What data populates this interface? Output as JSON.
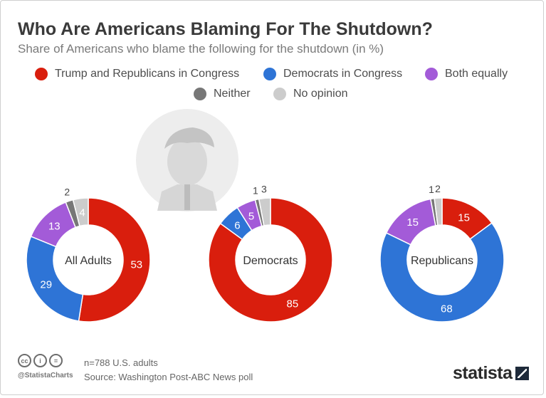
{
  "title": "Who Are Americans Blaming For The Shutdown?",
  "subtitle": "Share of Americans who blame the following for the shutdown (in %)",
  "legend": [
    {
      "label": "Trump and Republicans in Congress",
      "color": "#d91e0d"
    },
    {
      "label": "Democrats in Congress",
      "color": "#2e74d6"
    },
    {
      "label": "Both equally",
      "color": "#a35bd8"
    },
    {
      "label": "Neither",
      "color": "#777777"
    },
    {
      "label": "No opinion",
      "color": "#cccccc"
    }
  ],
  "chart_data": [
    {
      "type": "pie",
      "title": "All Adults",
      "series": [
        {
          "name": "Trump and Republicans in Congress",
          "value": 53,
          "color": "#d91e0d"
        },
        {
          "name": "Democrats in Congress",
          "value": 29,
          "color": "#2e74d6"
        },
        {
          "name": "Both equally",
          "value": 13,
          "color": "#a35bd8"
        },
        {
          "name": "Neither",
          "value": 2,
          "color": "#777777"
        },
        {
          "name": "No opinion",
          "value": 4,
          "color": "#cccccc"
        }
      ]
    },
    {
      "type": "pie",
      "title": "Democrats",
      "series": [
        {
          "name": "Trump and Republicans in Congress",
          "value": 85,
          "color": "#d91e0d"
        },
        {
          "name": "Democrats in Congress",
          "value": 6,
          "color": "#2e74d6"
        },
        {
          "name": "Both equally",
          "value": 5,
          "color": "#a35bd8"
        },
        {
          "name": "Neither",
          "value": 1,
          "color": "#777777"
        },
        {
          "name": "No opinion",
          "value": 3,
          "color": "#cccccc"
        }
      ]
    },
    {
      "type": "pie",
      "title": "Republicans",
      "series": [
        {
          "name": "Trump and Republicans in Congress",
          "value": 15,
          "color": "#d91e0d"
        },
        {
          "name": "Democrats in Congress",
          "value": 68,
          "color": "#2e74d6"
        },
        {
          "name": "Both equally",
          "value": 15,
          "color": "#a35bd8"
        },
        {
          "name": "Neither",
          "value": 1,
          "color": "#777777"
        },
        {
          "name": "No opinion",
          "value": 2,
          "color": "#cccccc"
        }
      ]
    }
  ],
  "footer": {
    "note": "n=788 U.S. adults",
    "source": "Source: Washington Post-ABC News poll",
    "handle": "@StatistaCharts",
    "brand": "statista"
  }
}
